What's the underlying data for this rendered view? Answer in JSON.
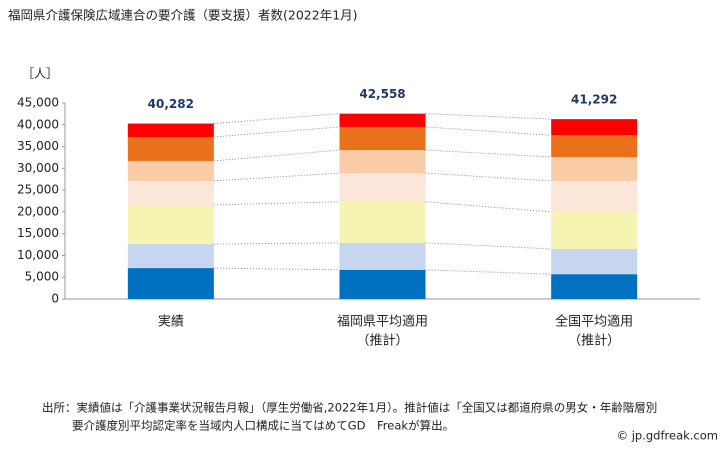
{
  "chart_data": {
    "type": "stacked_bar",
    "title": "福岡県介護保険広域連合の要介護（要支援）者数(2022年1月)",
    "y_unit": "［人］",
    "categories": [
      [
        "実績"
      ],
      [
        "福岡県平均適用",
        "（推計）"
      ],
      [
        "全国平均適用",
        "（推計）"
      ]
    ],
    "series": [
      {
        "color": "#0070c0",
        "values": [
          7100,
          6700,
          5700
        ]
      },
      {
        "color": "#c6d6f0",
        "values": [
          5500,
          6200,
          5800
        ]
      },
      {
        "color": "#f6f4b2",
        "values": [
          9000,
          9400,
          8500
        ]
      },
      {
        "color": "#fde6da",
        "values": [
          5500,
          6600,
          7100
        ]
      },
      {
        "color": "#fbcca8",
        "values": [
          4600,
          5300,
          5500
        ]
      },
      {
        "color": "#e9711c",
        "values": [
          5500,
          5300,
          5000
        ]
      },
      {
        "color": "#ff0000",
        "values": [
          3082,
          3058,
          3692
        ]
      }
    ],
    "totals": [
      40282,
      42558,
      41292
    ],
    "total_labels": [
      "40,282",
      "42,558",
      "41,292"
    ],
    "ylim": [
      0,
      45000
    ],
    "yticks": [
      0,
      {
        "value": 5000,
        "label": "5,000"
      },
      {
        "value": 10000,
        "label": "10,000"
      },
      {
        "value": 15000,
        "label": "15,000"
      },
      {
        "value": 20000,
        "label": "20,000"
      },
      {
        "value": 25000,
        "label": "25,000"
      },
      {
        "value": 30000,
        "label": "30,000"
      },
      {
        "value": 35000,
        "label": "35,000"
      },
      {
        "value": 40000,
        "label": "40,000"
      },
      {
        "value": 45000,
        "label": "45,000"
      }
    ],
    "footnote": [
      "出所：実績値は「介護事業状況報告月報」（厚生労働省,2022年1月）。推計値は「全国又は都道府県の男女・年齢階層別",
      "要介護度別平均認定率を当域内人口構成に当てはめてGD　Freakが算出。"
    ],
    "credit": "© jp.gdfreak.com"
  }
}
